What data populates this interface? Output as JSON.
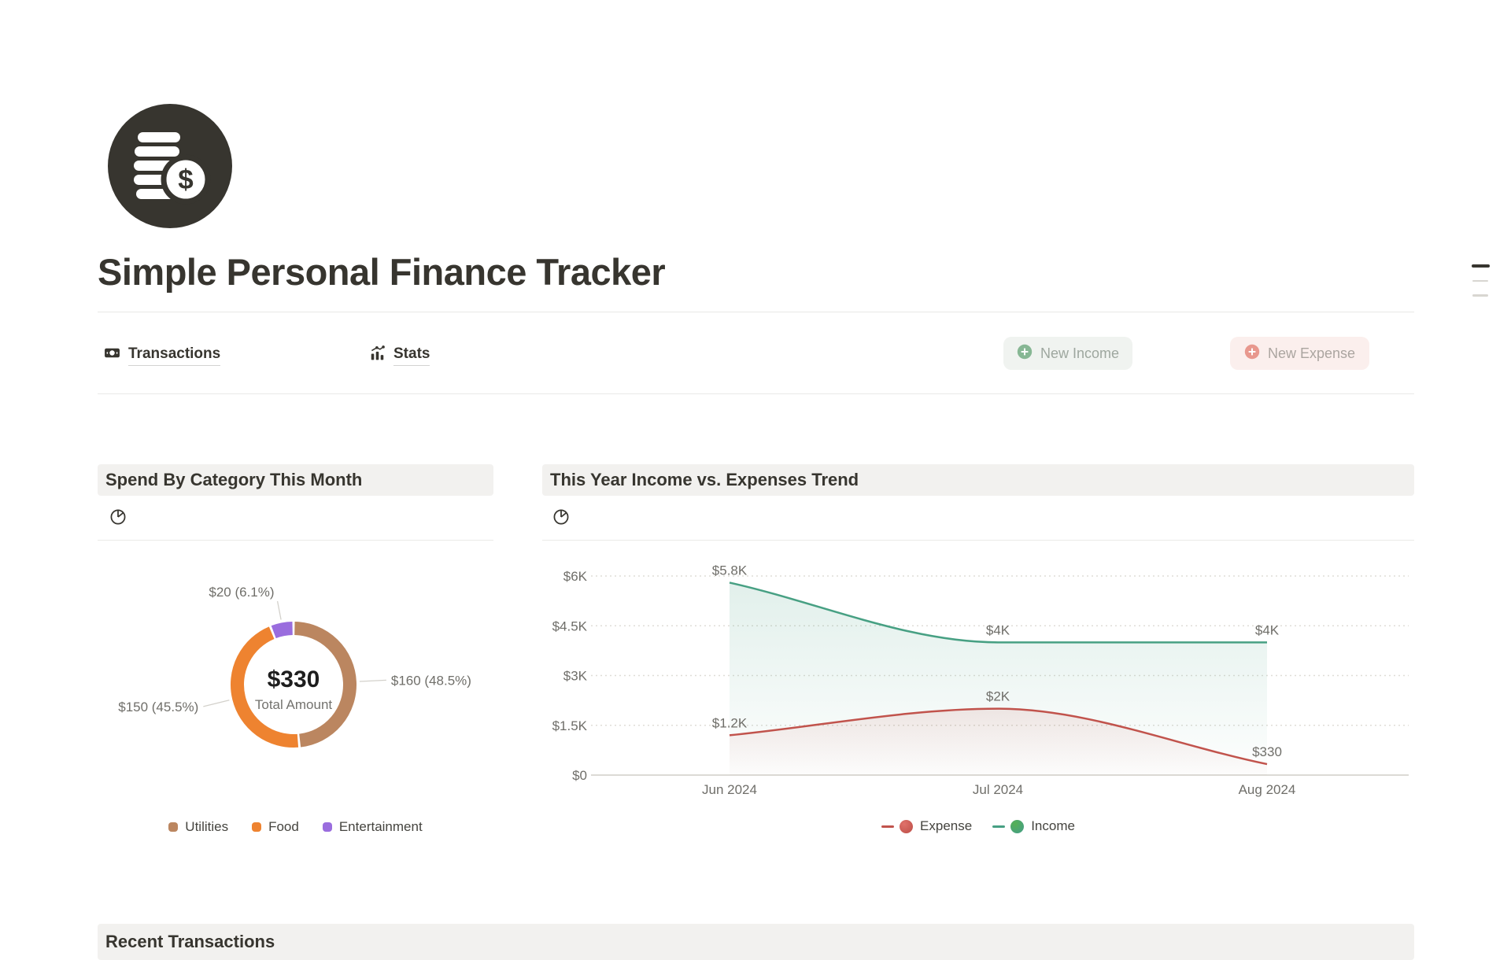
{
  "page": {
    "title": "Simple Personal Finance Tracker",
    "icon": "coins-dollar-icon"
  },
  "tabs": [
    {
      "label": "Transactions",
      "icon": "banknote-icon"
    },
    {
      "label": "Stats",
      "icon": "stats-chart-icon"
    }
  ],
  "buttons": [
    {
      "label": "New Income",
      "icon": "plus-circle-icon",
      "accent": "#87B794",
      "background": "#F0F3F0"
    },
    {
      "label": "New Expense",
      "icon": "plus-circle-icon",
      "accent": "#E8988E",
      "background": "#FBEFED"
    }
  ],
  "cards": {
    "spend": {
      "title": "Spend By Category This Month",
      "icon": "pie-chart-icon"
    },
    "trend": {
      "title": "This Year Income vs. Expenses Trend",
      "icon": "pie-chart-icon"
    }
  },
  "recent": {
    "title": "Recent Transactions"
  },
  "colors": {
    "text_dark": "#37352F",
    "text_muted": "#6F6E69",
    "band_background": "#F2F1EF",
    "divider": "#E9E9E7"
  },
  "chart_data": [
    {
      "type": "pie",
      "variant": "donut",
      "title": "Spend By Category This Month",
      "center": {
        "value": "$330",
        "label": "Total Amount"
      },
      "slices": [
        {
          "label": "Utilities",
          "value": 160,
          "display": "$160 (48.5%)",
          "color": "#BB8660"
        },
        {
          "label": "Food",
          "value": 150,
          "display": "$150 (45.5%)",
          "color": "#EE8330"
        },
        {
          "label": "Entertainment",
          "value": 20,
          "display": "$20 (6.1%)",
          "color": "#9A6DDE"
        }
      ],
      "legend_position": "bottom"
    },
    {
      "type": "line",
      "title": "This Year Income vs. Expenses Trend",
      "x": [
        "Jun 2024",
        "Jul 2024",
        "Aug 2024"
      ],
      "series": [
        {
          "name": "Expense",
          "values": [
            1200,
            2000,
            330
          ],
          "point_labels": [
            "$1.2K",
            "$2K",
            "$330"
          ],
          "color": "#C1534C",
          "marker_color": "#E0716A"
        },
        {
          "name": "Income",
          "values": [
            5800,
            4000,
            4000
          ],
          "point_labels": [
            "$5.8K",
            "$4K",
            "$4K"
          ],
          "color": "#47A083",
          "marker_color": "#55B054"
        }
      ],
      "y_ticks": [
        {
          "value": 0,
          "label": "$0"
        },
        {
          "value": 1500,
          "label": "$1.5K"
        },
        {
          "value": 3000,
          "label": "$3K"
        },
        {
          "value": 4500,
          "label": "$4.5K"
        },
        {
          "value": 6000,
          "label": "$6K"
        }
      ],
      "ylim": [
        0,
        6000
      ],
      "grid": "horizontal-dotted",
      "smooth": true,
      "area_fill": true,
      "legend_position": "bottom"
    }
  ]
}
